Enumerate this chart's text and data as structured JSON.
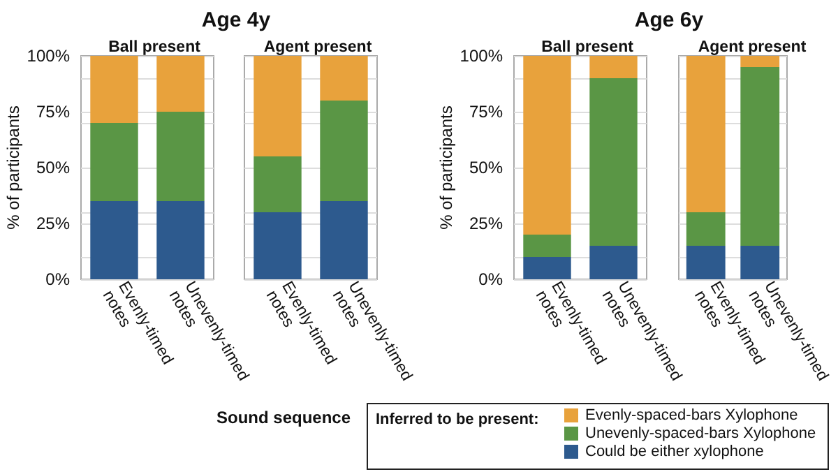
{
  "chart_data": [
    {
      "type": "bar",
      "title": "Age 4y",
      "subtitle": "Ball present",
      "xlabel": "Sound sequence",
      "ylabel": "% of participants",
      "stacked": true,
      "categories": [
        "Evenly-timed notes",
        "Unevenly-timed notes"
      ],
      "series": [
        {
          "color": "#2d5a8e",
          "values": [
            35,
            35
          ]
        },
        {
          "color": "#5a9645",
          "values": [
            35,
            40
          ]
        },
        {
          "color": "#e8a23c",
          "values": [
            30,
            25
          ]
        }
      ],
      "ylim": [
        0,
        100
      ],
      "yticks": [
        {
          "value": 0,
          "label": "0%"
        },
        {
          "value": 25,
          "label": "25%"
        },
        {
          "value": 50,
          "label": "50%"
        },
        {
          "value": 75,
          "label": "75%"
        },
        {
          "value": 100,
          "label": "100%"
        }
      ],
      "grid": "y",
      "legend": false
    },
    {
      "type": "bar",
      "subtitle": "Agent present",
      "stacked": true,
      "categories": [
        "Evenly-timed notes",
        "Unevenly-timed notes"
      ],
      "series": [
        {
          "color": "#2d5a8e",
          "values": [
            30,
            35
          ]
        },
        {
          "color": "#5a9645",
          "values": [
            25,
            45
          ]
        },
        {
          "color": "#e8a23c",
          "values": [
            45,
            20
          ]
        }
      ],
      "ylim": [
        0,
        100
      ],
      "yticks": [
        {
          "value": 0,
          "label": "0%"
        },
        {
          "value": 25,
          "label": "25%"
        },
        {
          "value": 50,
          "label": "50%"
        },
        {
          "value": 75,
          "label": "75%"
        },
        {
          "value": 100,
          "label": "100%"
        }
      ],
      "grid": "y",
      "legend": false,
      "tick_labels": "x"
    },
    {
      "type": "bar",
      "title": "Age 6y",
      "subtitle": "Ball present",
      "ylabel": "% of participants",
      "stacked": true,
      "categories": [
        "Evenly-timed notes",
        "Unevenly-timed notes"
      ],
      "series": [
        {
          "color": "#2d5a8e",
          "values": [
            10,
            15
          ]
        },
        {
          "color": "#5a9645",
          "values": [
            10,
            75
          ]
        },
        {
          "color": "#e8a23c",
          "values": [
            80,
            10
          ]
        }
      ],
      "ylim": [
        0,
        100
      ],
      "yticks": [
        {
          "value": 0,
          "label": "0%"
        },
        {
          "value": 25,
          "label": "25%"
        },
        {
          "value": 50,
          "label": "50%"
        },
        {
          "value": 75,
          "label": "75%"
        },
        {
          "value": 100,
          "label": "100%"
        }
      ],
      "grid": "y",
      "legend": false
    },
    {
      "type": "bar",
      "subtitle": "Agent present",
      "stacked": true,
      "categories": [
        "Evenly-timed notes",
        "Unevenly-timed notes"
      ],
      "legend_title": "Inferred to be present:",
      "series": [
        {
          "name": "Could be either xylophone",
          "color": "#2d5a8e",
          "values": [
            15,
            15
          ]
        },
        {
          "name": "Unevenly-spaced-bars Xylophone",
          "color": "#5a9645",
          "values": [
            15,
            80
          ]
        },
        {
          "name": "Evenly-spaced-bars Xylophone",
          "color": "#e8a23c",
          "values": [
            70,
            5
          ]
        }
      ],
      "ylim": [
        0,
        100
      ],
      "yticks": [
        {
          "value": 0,
          "label": "0%"
        },
        {
          "value": 25,
          "label": "25%"
        },
        {
          "value": 50,
          "label": "50%"
        },
        {
          "value": 75,
          "label": "75%"
        },
        {
          "value": 100,
          "label": "100%"
        }
      ],
      "grid": "y",
      "legend": "bottom",
      "tick_labels": "x"
    }
  ]
}
